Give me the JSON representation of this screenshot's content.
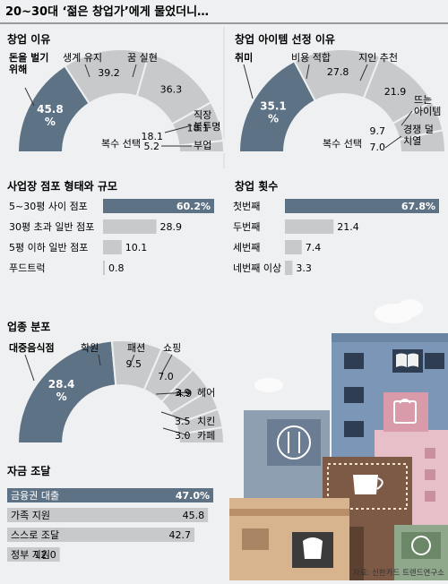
{
  "header": {
    "title": "20~30대 ‘젊은 창업가’에게 물었더니…"
  },
  "colors": {
    "accent": "#5e7285",
    "gray": "#c7c9cb",
    "bg": "#eef0f1",
    "text": "#222222"
  },
  "source": "자료: 신한카드 트렌드연구소",
  "chart_data": [
    {
      "id": "reason",
      "type": "pie",
      "title": "창업 이유",
      "center_label": "복수 선택",
      "unit": "%",
      "slices": [
        {
          "label": "돈을 벌기 위해",
          "value": 45.8
        },
        {
          "label": "생계 유지",
          "value": 39.2
        },
        {
          "label": "꿈 실현",
          "value": 36.3
        },
        {
          "label": "직장 불투명",
          "value": 18.1
        },
        {
          "label": "부업",
          "value": 5.2
        }
      ]
    },
    {
      "id": "item",
      "type": "pie",
      "title": "창업 아이템 선정 이유",
      "center_label": "복수 선택",
      "unit": "%",
      "slices": [
        {
          "label": "취미",
          "value": 35.1
        },
        {
          "label": "비용 적합",
          "value": 27.8
        },
        {
          "label": "지인 추천",
          "value": 21.9
        },
        {
          "label": "뜨는 아이템",
          "value": 9.7
        },
        {
          "label": "경쟁 덜 치열",
          "value": 7.0
        }
      ]
    },
    {
      "id": "store",
      "type": "bar",
      "title": "사업장 점포 형태와 규모",
      "unit": "%",
      "categories": [
        "5~30평 사이 점포",
        "30평 초과 일반 점포",
        "5평 이하 일반 점포",
        "푸드트럭"
      ],
      "values": [
        60.2,
        28.9,
        10.1,
        0.8
      ]
    },
    {
      "id": "count",
      "type": "bar",
      "title": "창업 횟수",
      "unit": "%",
      "categories": [
        "첫번째",
        "두번째",
        "세번째",
        "네번째 이상"
      ],
      "values": [
        67.8,
        21.4,
        7.4,
        3.3
      ]
    },
    {
      "id": "industry",
      "type": "pie",
      "title": "업종 분포",
      "unit": "%",
      "slices": [
        {
          "label": "대중음식점",
          "value": 28.4
        },
        {
          "label": "학원",
          "value": 9.5
        },
        {
          "label": "패션",
          "value": 7.0
        },
        {
          "label": "쇼핑",
          "value": 4.9
        },
        {
          "label": "헤어",
          "value": 3.9
        },
        {
          "label": "치킨",
          "value": 3.5
        },
        {
          "label": "카페",
          "value": 3.0
        }
      ]
    },
    {
      "id": "fund",
      "type": "bar",
      "title": "자금 조달",
      "unit": "%",
      "categories": [
        "금융권 대출",
        "가족 지원",
        "스스로 조달",
        "정부 지원"
      ],
      "values": [
        47.0,
        45.8,
        42.7,
        12.0
      ]
    }
  ]
}
